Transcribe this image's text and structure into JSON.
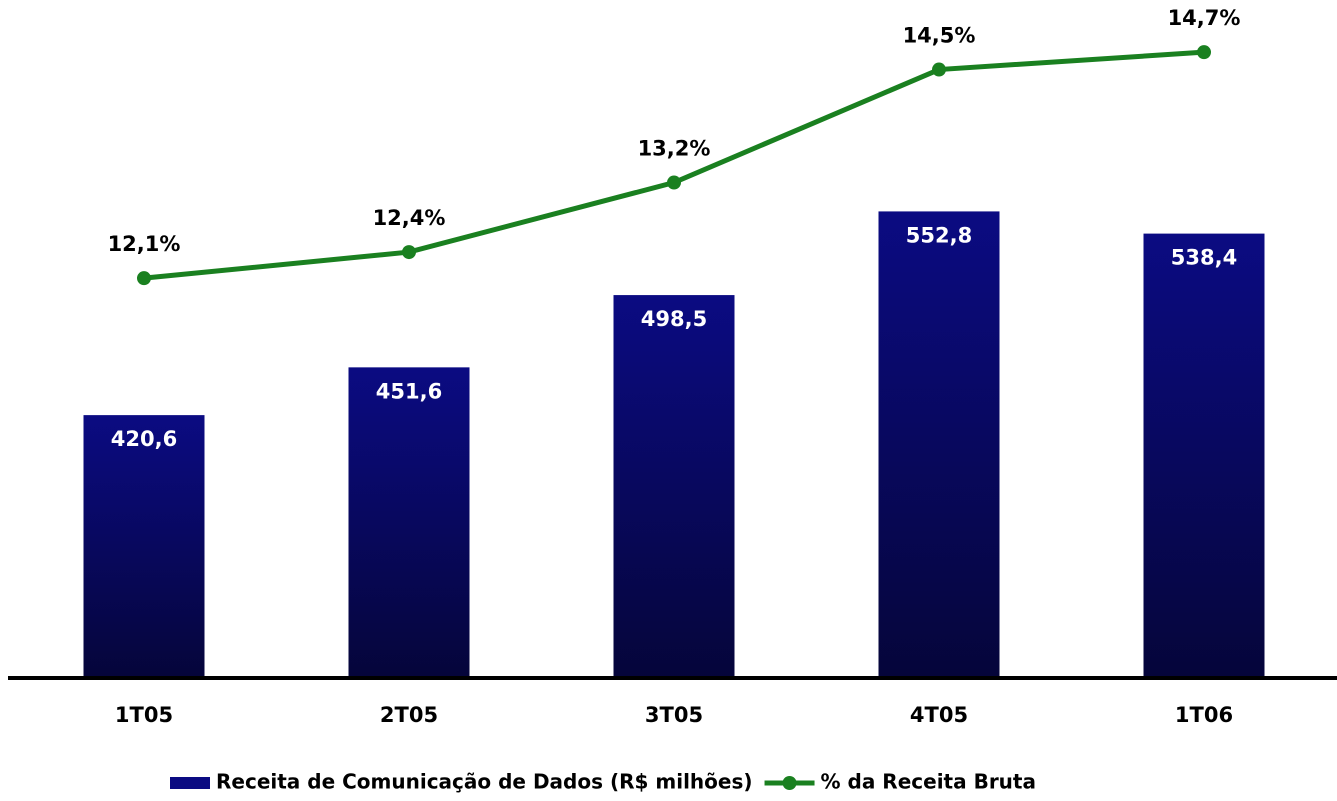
{
  "chart_data": {
    "type": "bar-line",
    "categories": [
      "1T05",
      "2T05",
      "3T05",
      "4T05",
      "1T06"
    ],
    "series": [
      {
        "name": "Receita de Comunicação de Dados (R$ milhões)",
        "type": "bar",
        "color": "#0b0b82",
        "values": [
          420.6,
          451.6,
          498.5,
          552.8,
          538.4
        ],
        "value_labels": [
          "420,6",
          "451,6",
          "498,5",
          "552,8",
          "538,4"
        ]
      },
      {
        "name": "% da Receita Bruta",
        "type": "line",
        "axis": "y2",
        "color": "#1a8020",
        "values": [
          12.1,
          12.4,
          13.2,
          14.5,
          14.7
        ],
        "value_labels": [
          "12,1%",
          "12,4%",
          "13,2%",
          "14,5%",
          "14,7%"
        ]
      }
    ],
    "ylim": [
      250,
      690
    ],
    "y2lim": [
      7.5,
      15.3
    ],
    "legend": "bottom"
  }
}
